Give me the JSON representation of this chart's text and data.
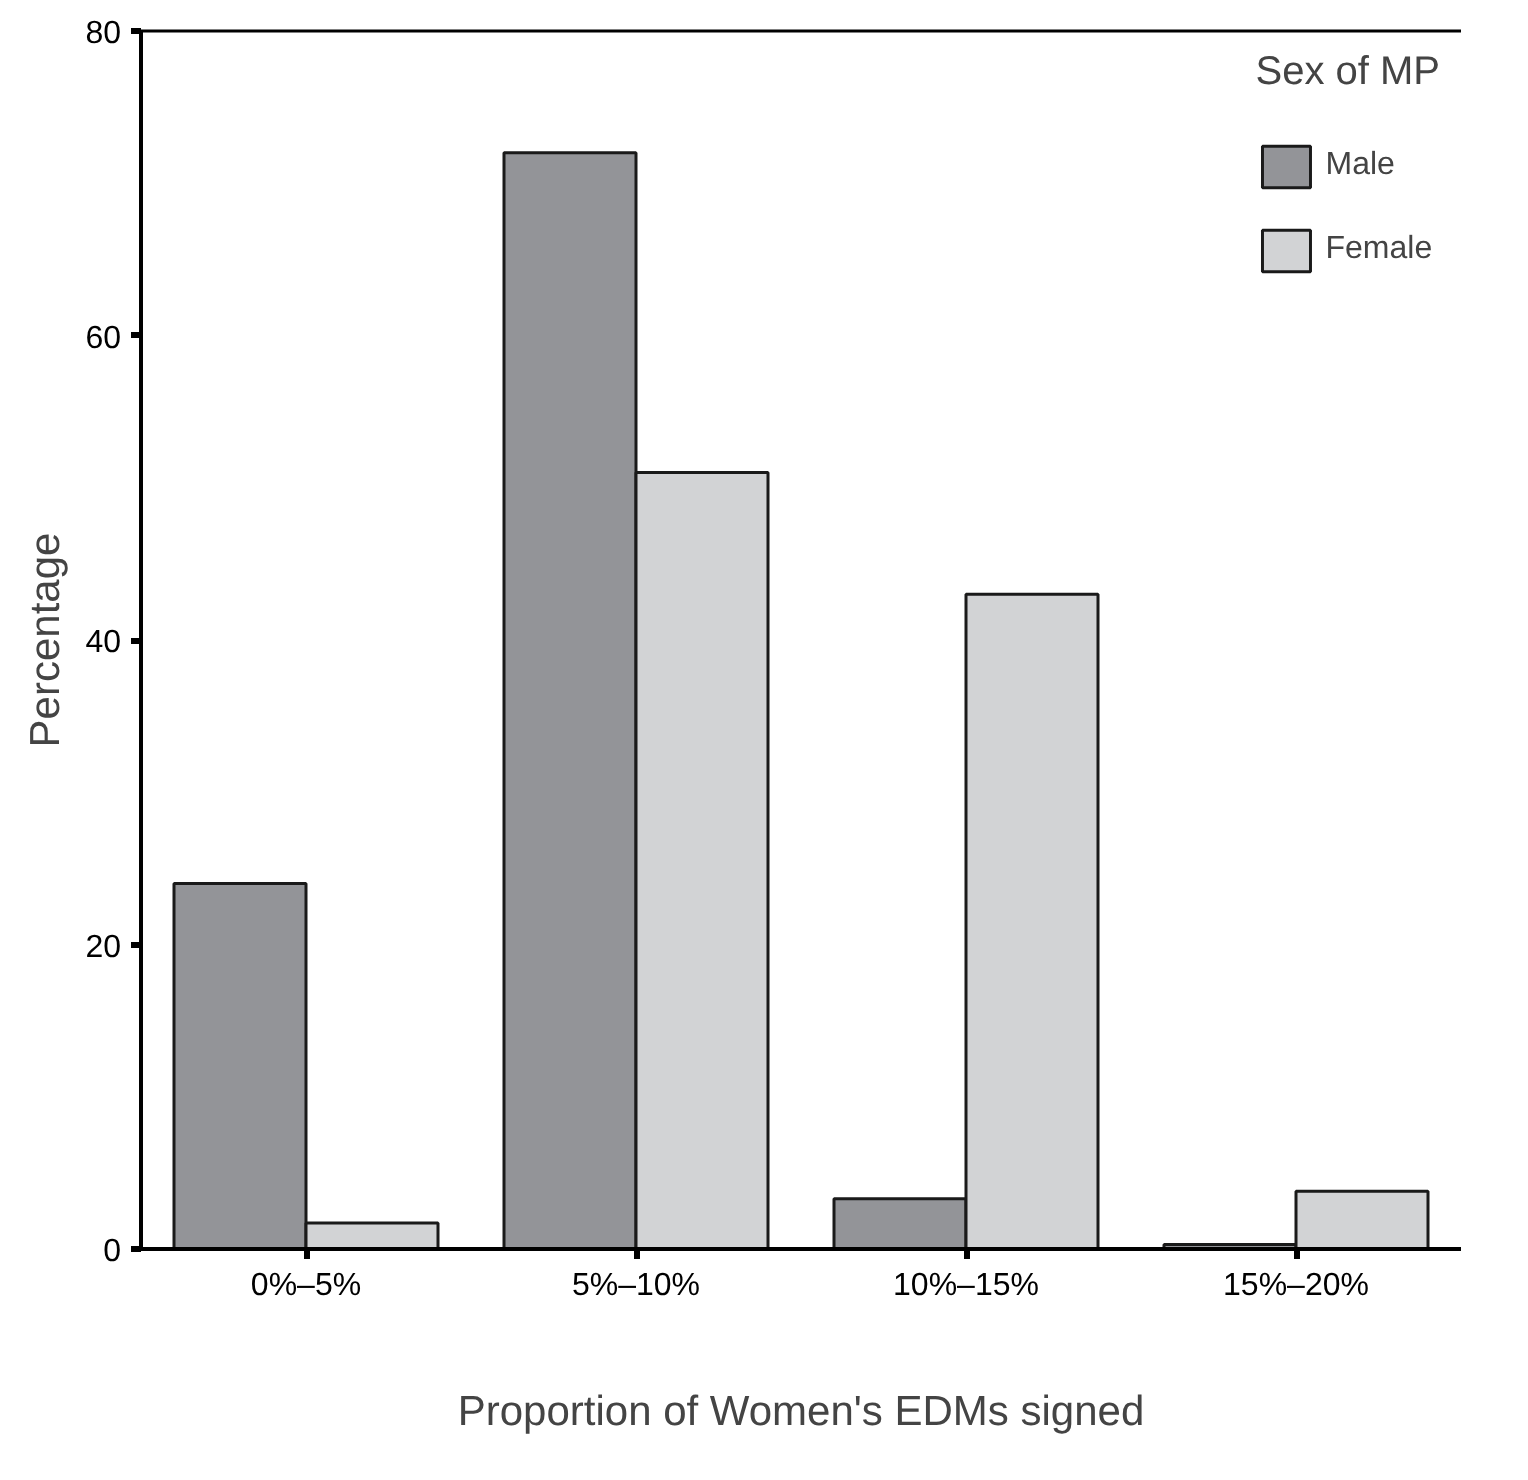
{
  "chart_data": {
    "type": "bar",
    "xlabel": "Proportion of Women's EDMs signed",
    "ylabel": "Percentage",
    "legend_title": "Sex of MP",
    "categories": [
      "0%–5%",
      "5%–10%",
      "10%–15%",
      "15%–20%"
    ],
    "series": [
      {
        "name": "Male",
        "color": "#939498",
        "values": [
          24,
          72,
          3.3,
          0.3
        ]
      },
      {
        "name": "Female",
        "color": "#d2d3d5",
        "values": [
          1.7,
          51,
          43,
          3.8
        ]
      }
    ],
    "ylim": [
      0,
      80
    ],
    "yticks": [
      0,
      20,
      40,
      60,
      80
    ],
    "grid": false,
    "legend": "top right"
  }
}
